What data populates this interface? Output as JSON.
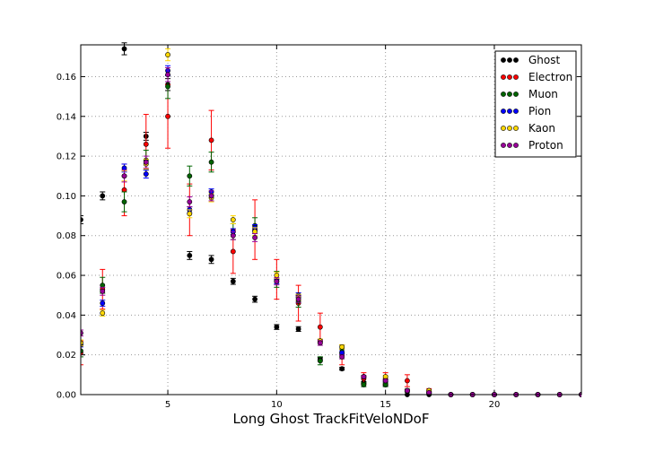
{
  "chart_data": {
    "type": "scatter",
    "title": "",
    "xlabel": "Long Ghost TrackFitVeloNDoF",
    "ylabel": "",
    "xlim": [
      1,
      24
    ],
    "ylim": [
      0,
      0.176
    ],
    "grid": true,
    "legend_position": "top-right",
    "x_ticks": [
      5,
      10,
      15,
      20
    ],
    "x_tick_labels": [
      "5",
      "10",
      "15",
      "20"
    ],
    "y_ticks": [
      0.0,
      0.02,
      0.04,
      0.06,
      0.08,
      0.1,
      0.12,
      0.14,
      0.16
    ],
    "y_tick_labels": [
      "0.00",
      "0.02",
      "0.04",
      "0.06",
      "0.08",
      "0.10",
      "0.12",
      "0.14",
      "0.16"
    ],
    "x": [
      1,
      2,
      3,
      4,
      5,
      6,
      7,
      8,
      9,
      10,
      11,
      12,
      13,
      14,
      15,
      16,
      17,
      18,
      19,
      20,
      21,
      22,
      23,
      24
    ],
    "series": [
      {
        "name": "Ghost",
        "color": "#000000",
        "values": [
          0.088,
          0.1,
          0.174,
          0.13,
          0.156,
          0.07,
          0.068,
          0.057,
          0.048,
          0.034,
          0.033,
          0.018,
          0.013,
          0.006,
          0.005,
          0,
          0,
          0,
          0,
          0,
          0,
          0,
          0,
          0
        ],
        "errors": [
          0.002,
          0.002,
          0.003,
          0.002,
          0.003,
          0.002,
          0.002,
          0.0015,
          0.0015,
          0.0012,
          0.0012,
          0.0008,
          0.0007,
          0.0005,
          0.0005,
          0,
          0,
          0,
          0,
          0,
          0,
          0,
          0,
          0
        ]
      },
      {
        "name": "Electron",
        "color": "#ff0000",
        "values": [
          0.021,
          0.053,
          0.103,
          0.126,
          0.14,
          0.093,
          0.128,
          0.072,
          0.083,
          0.058,
          0.046,
          0.034,
          0.02,
          0.008,
          0.008,
          0.007,
          0.002,
          0,
          0,
          0,
          0,
          0,
          0,
          0
        ],
        "errors": [
          0.006,
          0.01,
          0.013,
          0.015,
          0.016,
          0.013,
          0.015,
          0.011,
          0.015,
          0.01,
          0.009,
          0.007,
          0.005,
          0.003,
          0.003,
          0.003,
          0.001,
          0,
          0,
          0,
          0,
          0,
          0,
          0
        ]
      },
      {
        "name": "Muon",
        "color": "#006400",
        "values": [
          0.022,
          0.055,
          0.097,
          0.118,
          0.155,
          0.11,
          0.117,
          0.082,
          0.085,
          0.058,
          0.047,
          0.017,
          0.023,
          0.005,
          0.005,
          0.002,
          0.001,
          0,
          0,
          0,
          0,
          0,
          0,
          0
        ],
        "errors": [
          0.003,
          0.004,
          0.005,
          0.005,
          0.006,
          0.005,
          0.005,
          0.004,
          0.004,
          0.004,
          0.003,
          0.002,
          0.002,
          0.001,
          0.001,
          0.0008,
          0.0005,
          0,
          0,
          0,
          0,
          0,
          0,
          0
        ]
      },
      {
        "name": "Pion",
        "color": "#0000ff",
        "values": [
          0.025,
          0.046,
          0.114,
          0.111,
          0.163,
          0.093,
          0.102,
          0.082,
          0.084,
          0.057,
          0.05,
          0.027,
          0.021,
          0.009,
          0.007,
          0.002,
          0.001,
          0,
          0,
          0,
          0,
          0,
          0,
          0
        ],
        "errors": [
          0.001,
          0.0015,
          0.002,
          0.002,
          0.0025,
          0.0015,
          0.0015,
          0.0015,
          0.0015,
          0.0012,
          0.0012,
          0.0008,
          0.0008,
          0.0005,
          0.0005,
          0.0003,
          0.0002,
          0,
          0,
          0,
          0,
          0,
          0,
          0
        ]
      },
      {
        "name": "Kaon",
        "color": "#ffd700",
        "values": [
          0.026,
          0.041,
          0.11,
          0.116,
          0.171,
          0.091,
          0.099,
          0.088,
          0.082,
          0.06,
          0.049,
          0.027,
          0.024,
          0.009,
          0.009,
          0.002,
          0.002,
          0,
          0,
          0,
          0,
          0,
          0,
          0
        ],
        "errors": [
          0.0015,
          0.0015,
          0.0025,
          0.0025,
          0.003,
          0.002,
          0.002,
          0.002,
          0.002,
          0.0015,
          0.0015,
          0.001,
          0.001,
          0.0006,
          0.0006,
          0.0003,
          0.0003,
          0,
          0,
          0,
          0,
          0,
          0,
          0
        ]
      },
      {
        "name": "Proton",
        "color": "#990099",
        "values": [
          0.031,
          0.052,
          0.11,
          0.117,
          0.161,
          0.097,
          0.1,
          0.08,
          0.079,
          0.057,
          0.048,
          0.026,
          0.019,
          0.009,
          0.007,
          0.002,
          0.001,
          0,
          0,
          0,
          0,
          0,
          0,
          0
        ],
        "errors": [
          0.0015,
          0.002,
          0.003,
          0.003,
          0.0035,
          0.0025,
          0.0025,
          0.002,
          0.002,
          0.0018,
          0.0016,
          0.0012,
          0.001,
          0.0006,
          0.0006,
          0.0003,
          0.0003,
          0,
          0,
          0,
          0,
          0,
          0,
          0
        ]
      }
    ]
  }
}
